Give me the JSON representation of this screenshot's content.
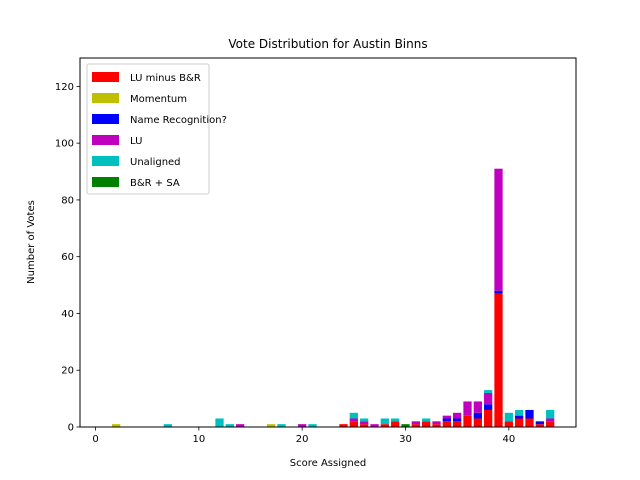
{
  "chart_data": {
    "type": "bar",
    "stacked": true,
    "title": "Vote Distribution for Austin Binns",
    "xlabel": "Score Assigned",
    "ylabel": "Number of Votes",
    "xlim": [
      -1.5,
      46.5
    ],
    "ylim": [
      0,
      130
    ],
    "xticks": [
      0,
      10,
      20,
      30,
      40
    ],
    "yticks": [
      0,
      20,
      40,
      60,
      80,
      100,
      120
    ],
    "grid": false,
    "legend_position": "top-left",
    "series": [
      {
        "name": "LU minus B&R",
        "color": "#ff0000",
        "points": [
          [
            24,
            1
          ],
          [
            25,
            2
          ],
          [
            26,
            1
          ],
          [
            28,
            1
          ],
          [
            29,
            2
          ],
          [
            31,
            1
          ],
          [
            32,
            2
          ],
          [
            33,
            1
          ],
          [
            34,
            2
          ],
          [
            35,
            2
          ],
          [
            36,
            4
          ],
          [
            37,
            3
          ],
          [
            38,
            6
          ],
          [
            39,
            47
          ],
          [
            40,
            2
          ],
          [
            41,
            3
          ],
          [
            42,
            3
          ],
          [
            43,
            1
          ],
          [
            44,
            2
          ]
        ]
      },
      {
        "name": "Momentum",
        "color": "#bfbf00",
        "points": [
          [
            2,
            1
          ],
          [
            17,
            1
          ]
        ]
      },
      {
        "name": "Name Recognition?",
        "color": "#0000ff",
        "points": [
          [
            34,
            1
          ],
          [
            35,
            1
          ],
          [
            37,
            2
          ],
          [
            38,
            2
          ],
          [
            39,
            1
          ],
          [
            41,
            1
          ],
          [
            42,
            3
          ],
          [
            43,
            1
          ]
        ]
      },
      {
        "name": "LU",
        "color": "#bf00bf",
        "points": [
          [
            14,
            1
          ],
          [
            20,
            1
          ],
          [
            25,
            1
          ],
          [
            26,
            1
          ],
          [
            27,
            1
          ],
          [
            31,
            1
          ],
          [
            33,
            1
          ],
          [
            34,
            1
          ],
          [
            35,
            2
          ],
          [
            36,
            5
          ],
          [
            37,
            4
          ],
          [
            38,
            4
          ],
          [
            39,
            43
          ],
          [
            44,
            1
          ]
        ]
      },
      {
        "name": "Unaligned",
        "color": "#00bfbf",
        "points": [
          [
            7,
            1
          ],
          [
            12,
            3
          ],
          [
            13,
            1
          ],
          [
            18,
            1
          ],
          [
            21,
            1
          ],
          [
            25,
            2
          ],
          [
            26,
            1
          ],
          [
            28,
            2
          ],
          [
            29,
            1
          ],
          [
            32,
            1
          ],
          [
            38,
            1
          ],
          [
            40,
            3
          ],
          [
            41,
            2
          ],
          [
            44,
            3
          ]
        ]
      },
      {
        "name": "B&R + SA",
        "color": "#008000",
        "points": [
          [
            30,
            1
          ]
        ]
      }
    ]
  }
}
